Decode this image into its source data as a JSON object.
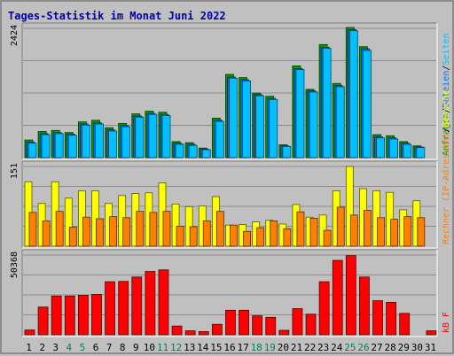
{
  "chart_data": {
    "type": "bar",
    "title": "Tages-Statistik im Monat Juni 2022",
    "categories": [
      "1",
      "2",
      "3",
      "4",
      "5",
      "6",
      "7",
      "8",
      "9",
      "10",
      "11",
      "12",
      "13",
      "14",
      "15",
      "16",
      "17",
      "18",
      "19",
      "20",
      "21",
      "22",
      "23",
      "24",
      "25",
      "26",
      "27",
      "28",
      "29",
      "30",
      "31"
    ],
    "weekend_days": [
      "4",
      "5",
      "11",
      "12",
      "18",
      "19",
      "25",
      "26"
    ],
    "colors": {
      "title": "#0000aa",
      "hits": "#00a000",
      "files": "#0070ff",
      "pages": "#00c0ff",
      "visits": "#ff8000",
      "sites": "#ffff00",
      "kbytes": "#ff0000",
      "weekday_label": "#000000",
      "weekend_label": "#00805a",
      "panel_bg": "#c0c0c0"
    },
    "panels": [
      {
        "name": "requests",
        "max_label": "2424",
        "legend": [
          {
            "text": "Anfragen",
            "color": "#00a000"
          },
          {
            "text": "/",
            "color": "#000000"
          },
          {
            "text": "Dateien",
            "color": "#0070ff"
          },
          {
            "text": "/",
            "color": "#000000"
          },
          {
            "text": "Seiten",
            "color": "#00c0ff"
          }
        ],
        "ymax": 2424,
        "series": [
          {
            "name": "Anfragen",
            "values": [
              330,
              490,
              510,
              470,
              670,
              700,
              560,
              640,
              820,
              870,
              850,
              300,
              280,
              180,
              740,
              1560,
              1500,
              1210,
              1150,
              240,
              1720,
              1280,
              2120,
              1390,
              2440,
              2080,
              430,
              410,
              300,
              220,
              0
            ]
          },
          {
            "name": "Dateien",
            "values": [
              290,
              450,
              470,
              440,
              630,
              650,
              520,
              600,
              780,
              830,
              810,
              270,
              250,
              160,
              700,
              1510,
              1460,
              1180,
              1110,
              220,
              1670,
              1250,
              2070,
              1350,
              2400,
              2040,
              390,
              370,
              270,
              200,
              0
            ]
          },
          {
            "name": "Seiten",
            "values": [
              270,
              430,
              450,
              420,
              610,
              630,
              500,
              580,
              760,
              810,
              790,
              250,
              230,
              150,
              680,
              1490,
              1440,
              1160,
              1090,
              210,
              1650,
              1230,
              2050,
              1330,
              2380,
              2010,
              370,
              350,
              250,
              190,
              0
            ]
          }
        ]
      },
      {
        "name": "visits",
        "max_label": "151",
        "legend": [
          {
            "text": "Rechner (IP-Adressen)",
            "color": "#ff8000"
          },
          {
            "text": "/",
            "color": "#000000"
          },
          {
            "text": "Besuche",
            "color": "#ffff00"
          }
        ],
        "ymax": 151,
        "series": [
          {
            "name": "Besuche",
            "values": [
              122,
              81,
              122,
              91,
              105,
              105,
              81,
              96,
              100,
              101,
              120,
              80,
              75,
              76,
              94,
              40,
              41,
              46,
              49,
              42,
              79,
              55,
              59,
              105,
              151,
              109,
              105,
              102,
              69,
              86,
              0
            ]
          },
          {
            "name": "Rechner (IP-Adressen)",
            "values": [
              64,
              48,
              66,
              36,
              55,
              52,
              56,
              54,
              66,
              64,
              66,
              38,
              37,
              48,
              66,
              40,
              28,
              35,
              48,
              33,
              65,
              53,
              30,
              74,
              59,
              68,
              54,
              51,
              56,
              54,
              0
            ]
          }
        ]
      },
      {
        "name": "kbytes",
        "max_label": "50368",
        "legend": [
          {
            "text": "kB F",
            "color": "#ff0000"
          }
        ],
        "ymax": 50368,
        "series": [
          {
            "name": "kB F",
            "values": [
              3000,
              17500,
              24500,
              24500,
              25000,
              25500,
              33500,
              33700,
              36500,
              40000,
              41000,
              5500,
              2500,
              2000,
              6600,
              15500,
              15500,
              12000,
              11000,
              2800,
              16500,
              13000,
              33500,
              47000,
              50000,
              36500,
              21500,
              20500,
              13500,
              0,
              2500
            ]
          }
        ]
      }
    ]
  }
}
